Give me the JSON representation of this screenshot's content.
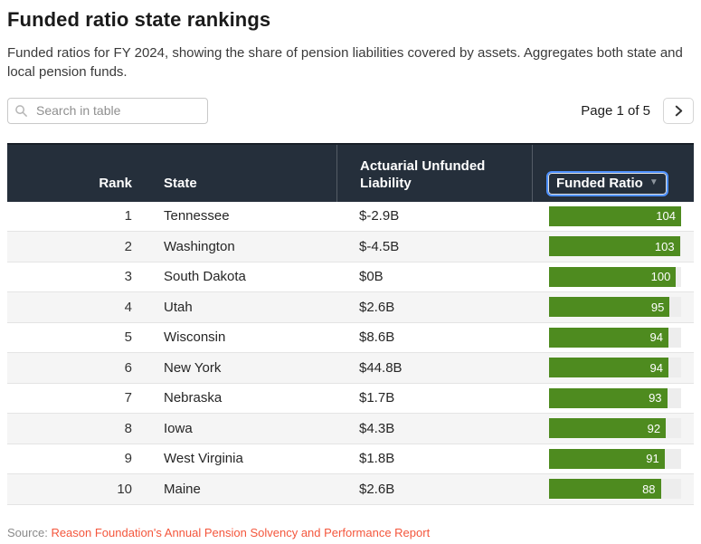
{
  "header": {
    "title": "Funded ratio state rankings",
    "subtitle": "Funded ratios for FY 2024, showing the share of pension liabilities covered by assets. Aggregates both state and local pension funds."
  },
  "toolbar": {
    "search": {
      "placeholder": "Search in table",
      "icon": "magnifier-icon"
    },
    "pagination": {
      "label": "Page 1 of 5",
      "next_icon": "chevron-right-icon"
    }
  },
  "table": {
    "columns": [
      "Rank",
      "State",
      "Actuarial Unfunded Liability",
      "Funded Ratio"
    ],
    "sort": {
      "column": "Funded Ratio",
      "direction": "desc",
      "indicator": "▼"
    },
    "bar_max": 104,
    "rows": [
      {
        "rank": "1",
        "state": "Tennessee",
        "liability": "$-2.9B",
        "funded_ratio": 104
      },
      {
        "rank": "2",
        "state": "Washington",
        "liability": "$-4.5B",
        "funded_ratio": 103
      },
      {
        "rank": "3",
        "state": "South Dakota",
        "liability": "$0B",
        "funded_ratio": 100
      },
      {
        "rank": "4",
        "state": "Utah",
        "liability": "$2.6B",
        "funded_ratio": 95
      },
      {
        "rank": "5",
        "state": "Wisconsin",
        "liability": "$8.6B",
        "funded_ratio": 94
      },
      {
        "rank": "6",
        "state": "New York",
        "liability": "$44.8B",
        "funded_ratio": 94
      },
      {
        "rank": "7",
        "state": "Nebraska",
        "liability": "$1.7B",
        "funded_ratio": 93
      },
      {
        "rank": "8",
        "state": "Iowa",
        "liability": "$4.3B",
        "funded_ratio": 92
      },
      {
        "rank": "9",
        "state": "West Virginia",
        "liability": "$1.8B",
        "funded_ratio": 91
      },
      {
        "rank": "10",
        "state": "Maine",
        "liability": "$2.6B",
        "funded_ratio": 88
      }
    ]
  },
  "footer": {
    "source_label": "Source:",
    "source_link_text": "Reason Foundation's Annual Pension Solvency and Performance Report"
  },
  "colors": {
    "header_bg": "#252f3b",
    "bar_green": "#4e8b1f",
    "bar_track": "#ededed",
    "link_red": "#f4563c",
    "row_alt_bg": "#f5f5f5",
    "focus_ring_blue": "#4d90fe"
  }
}
